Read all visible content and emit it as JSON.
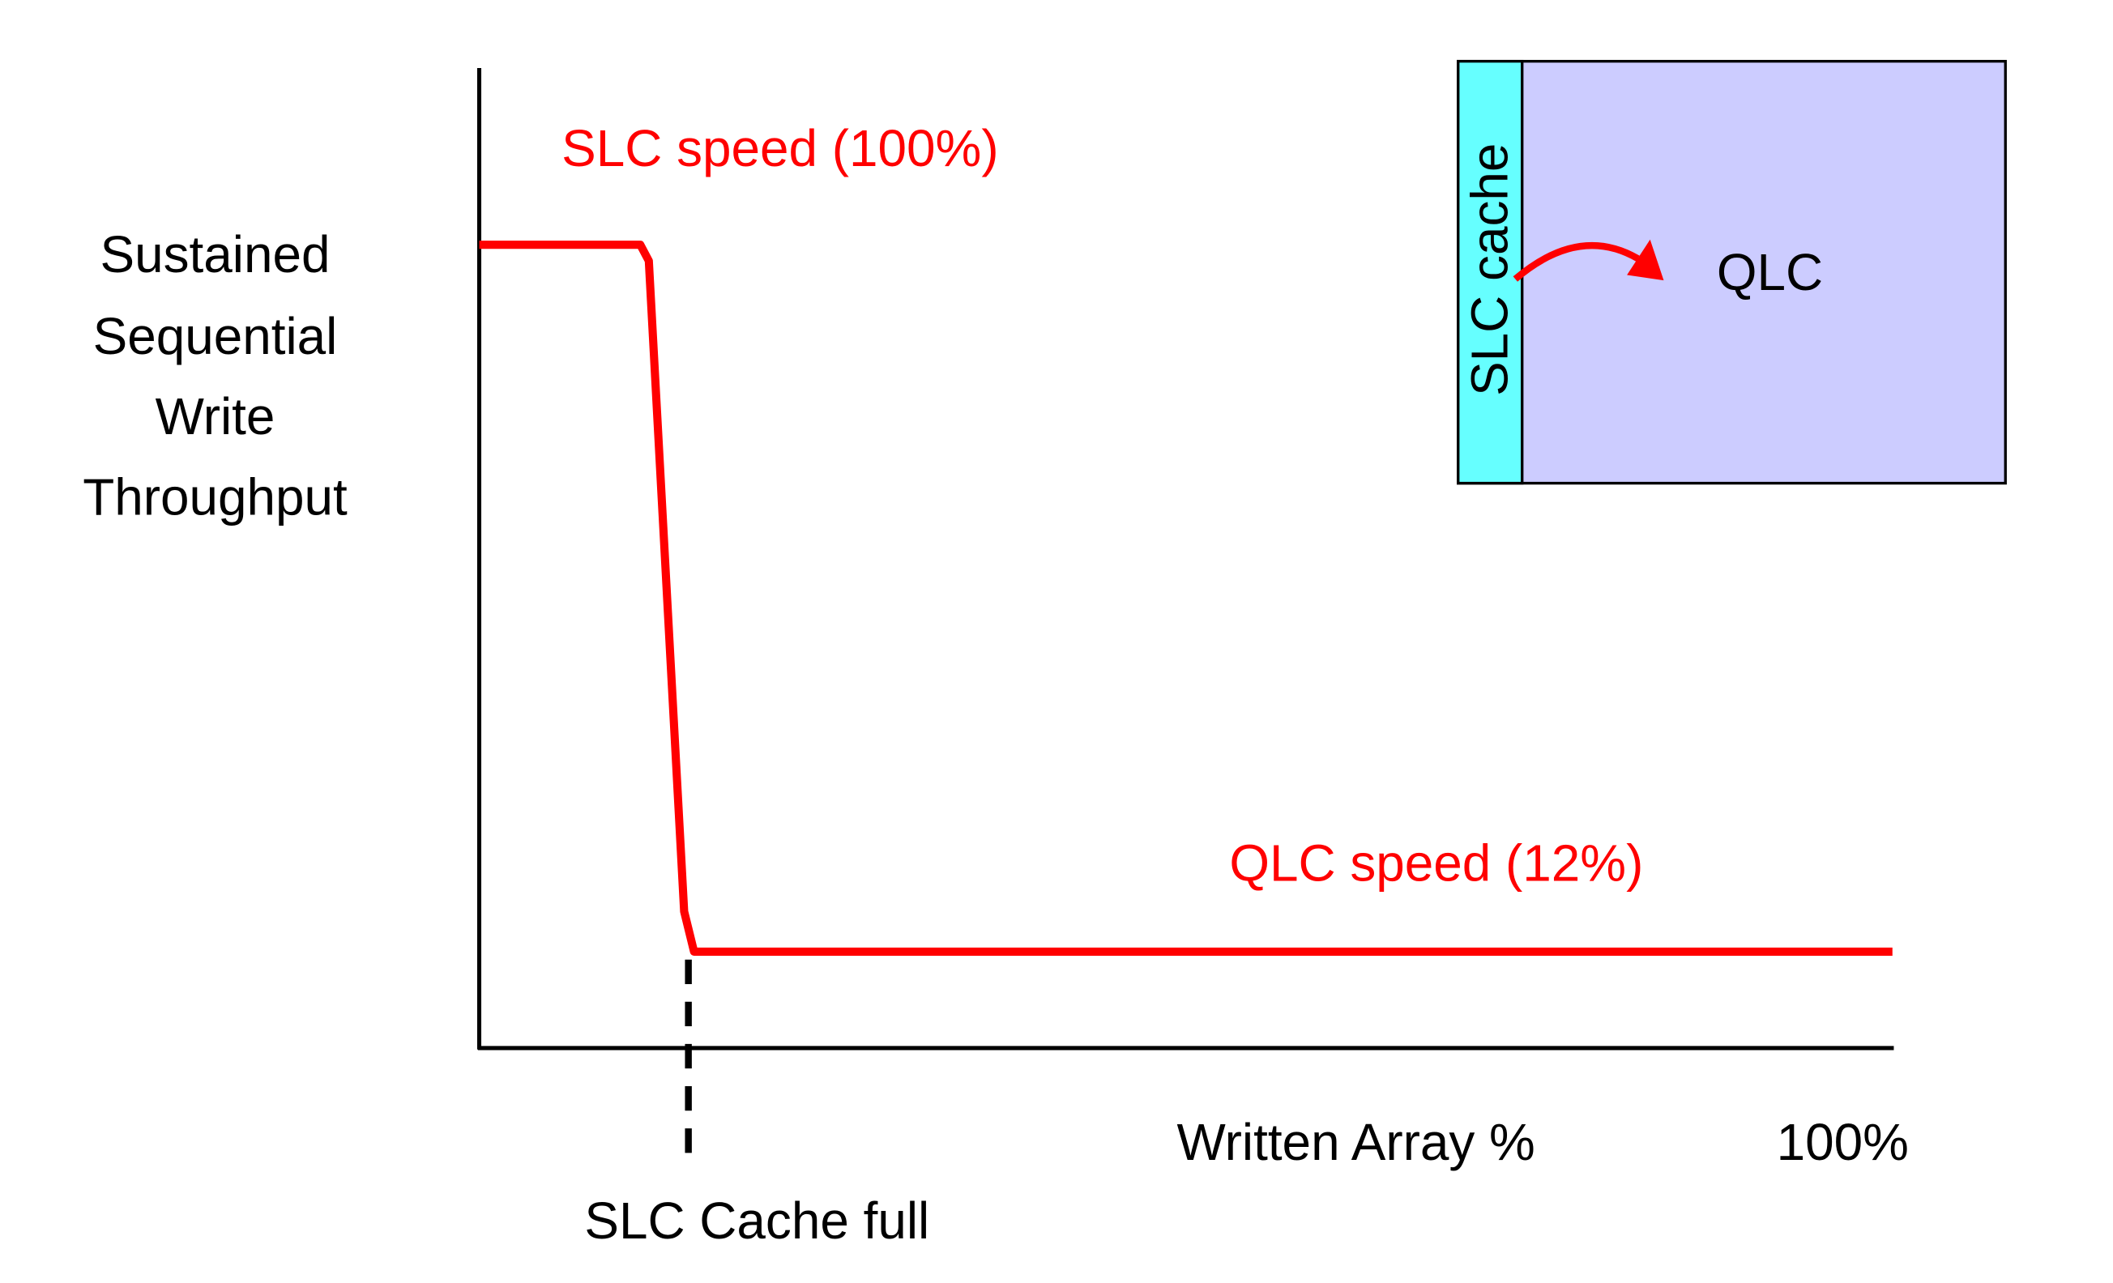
{
  "chart_data": {
    "type": "line",
    "x_label": "Written Array %",
    "y_label": [
      "Sustained",
      "Sequential",
      "Write",
      "Throughput"
    ],
    "x": [
      0,
      11.4,
      12,
      14.5,
      15.2,
      100
    ],
    "values": [
      100,
      100,
      98,
      17,
      12,
      12
    ],
    "color": "#ff0000",
    "xlim": [
      0,
      100
    ],
    "ylim": [
      0,
      122
    ],
    "xticks": [
      {
        "value": 100,
        "label": "100%"
      }
    ],
    "annotations": [
      "SLC speed (100%)",
      "QLC speed (12%)"
    ],
    "markers": [
      {
        "label": "SLC Cache full",
        "x": 14.8
      }
    ],
    "inset": {
      "cache_label": "SLC cache",
      "main_label": "QLC"
    }
  }
}
